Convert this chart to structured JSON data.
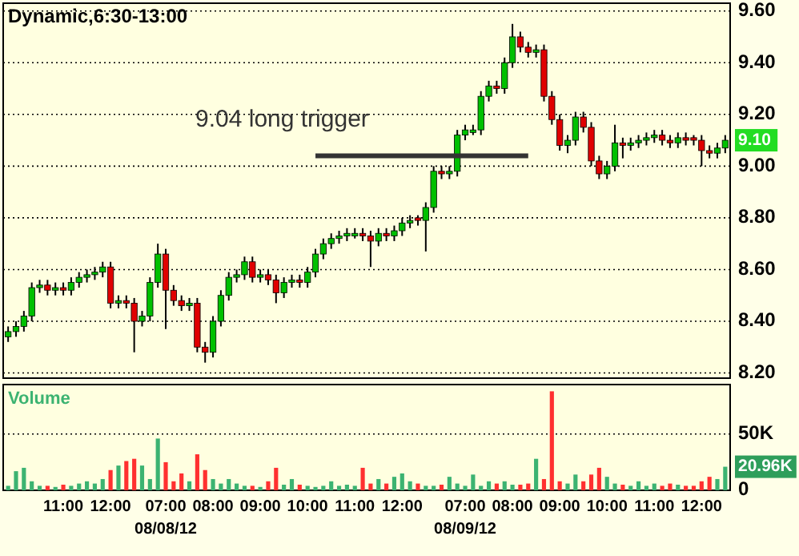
{
  "chart_data": [
    {
      "type": "candlestick",
      "title": "Dynamic,6:30-13:00",
      "ohlc": [
        [
          8.34,
          8.38,
          8.32,
          8.36
        ],
        [
          8.36,
          8.4,
          8.34,
          8.38
        ],
        [
          8.38,
          8.44,
          8.36,
          8.42
        ],
        [
          8.42,
          8.55,
          8.4,
          8.53
        ],
        [
          8.53,
          8.56,
          8.51,
          8.54
        ],
        [
          8.54,
          8.56,
          8.5,
          8.52
        ],
        [
          8.52,
          8.55,
          8.5,
          8.53
        ],
        [
          8.53,
          8.55,
          8.5,
          8.52
        ],
        [
          8.52,
          8.57,
          8.5,
          8.55
        ],
        [
          8.55,
          8.59,
          8.53,
          8.57
        ],
        [
          8.57,
          8.6,
          8.55,
          8.58
        ],
        [
          8.58,
          8.61,
          8.56,
          8.59
        ],
        [
          8.59,
          8.63,
          8.57,
          8.61
        ],
        [
          8.61,
          8.63,
          8.45,
          8.47
        ],
        [
          8.47,
          8.5,
          8.45,
          8.48
        ],
        [
          8.48,
          8.5,
          8.45,
          8.47
        ],
        [
          8.47,
          8.49,
          8.28,
          8.4
        ],
        [
          8.4,
          8.44,
          8.38,
          8.42
        ],
        [
          8.42,
          8.57,
          8.4,
          8.55
        ],
        [
          8.55,
          8.7,
          8.53,
          8.66
        ],
        [
          8.66,
          8.68,
          8.37,
          8.52
        ],
        [
          8.52,
          8.54,
          8.46,
          8.48
        ],
        [
          8.48,
          8.5,
          8.44,
          8.46
        ],
        [
          8.46,
          8.49,
          8.44,
          8.47
        ],
        [
          8.47,
          8.49,
          8.28,
          8.3
        ],
        [
          8.3,
          8.32,
          8.24,
          8.28
        ],
        [
          8.28,
          8.42,
          8.26,
          8.4
        ],
        [
          8.4,
          8.52,
          8.38,
          8.5
        ],
        [
          8.5,
          8.59,
          8.48,
          8.57
        ],
        [
          8.57,
          8.6,
          8.55,
          8.58
        ],
        [
          8.58,
          8.65,
          8.56,
          8.63
        ],
        [
          8.63,
          8.65,
          8.55,
          8.57
        ],
        [
          8.57,
          8.6,
          8.55,
          8.58
        ],
        [
          8.58,
          8.6,
          8.54,
          8.56
        ],
        [
          8.56,
          8.58,
          8.47,
          8.51
        ],
        [
          8.51,
          8.57,
          8.49,
          8.55
        ],
        [
          8.55,
          8.58,
          8.53,
          8.56
        ],
        [
          8.56,
          8.58,
          8.53,
          8.55
        ],
        [
          8.55,
          8.61,
          8.53,
          8.59
        ],
        [
          8.59,
          8.68,
          8.57,
          8.66
        ],
        [
          8.66,
          8.72,
          8.64,
          8.7
        ],
        [
          8.7,
          8.74,
          8.68,
          8.72
        ],
        [
          8.72,
          8.75,
          8.7,
          8.73
        ],
        [
          8.73,
          8.76,
          8.71,
          8.74
        ],
        [
          8.73,
          8.76,
          8.72,
          8.74
        ],
        [
          8.74,
          8.76,
          8.71,
          8.73
        ],
        [
          8.73,
          8.75,
          8.61,
          8.71
        ],
        [
          8.71,
          8.76,
          8.69,
          8.74
        ],
        [
          8.74,
          8.76,
          8.71,
          8.73
        ],
        [
          8.73,
          8.77,
          8.71,
          8.75
        ],
        [
          8.75,
          8.8,
          8.73,
          8.78
        ],
        [
          8.78,
          8.81,
          8.76,
          8.79
        ],
        [
          8.8,
          8.81,
          8.77,
          8.79
        ],
        [
          8.79,
          8.86,
          8.67,
          8.84
        ],
        [
          8.84,
          9.0,
          8.82,
          8.98
        ],
        [
          8.98,
          9.0,
          8.95,
          8.97
        ],
        [
          8.97,
          9.0,
          8.95,
          8.98
        ],
        [
          8.98,
          9.14,
          8.96,
          9.12
        ],
        [
          9.12,
          9.16,
          9.1,
          9.14
        ],
        [
          9.13,
          9.16,
          9.12,
          9.14
        ],
        [
          9.14,
          9.29,
          9.12,
          9.27
        ],
        [
          9.27,
          9.33,
          9.25,
          9.31
        ],
        [
          9.31,
          9.33,
          9.28,
          9.3
        ],
        [
          9.3,
          9.42,
          9.28,
          9.4
        ],
        [
          9.4,
          9.55,
          9.38,
          9.5
        ],
        [
          9.5,
          9.52,
          9.44,
          9.46
        ],
        [
          9.46,
          9.48,
          9.42,
          9.44
        ],
        [
          9.44,
          9.47,
          9.42,
          9.45
        ],
        [
          9.45,
          9.47,
          9.25,
          9.27
        ],
        [
          9.27,
          9.29,
          9.16,
          9.18
        ],
        [
          9.18,
          9.2,
          9.06,
          9.08
        ],
        [
          9.08,
          9.12,
          9.05,
          9.1
        ],
        [
          9.1,
          9.21,
          9.08,
          9.19
        ],
        [
          9.19,
          9.21,
          9.13,
          9.15
        ],
        [
          9.15,
          9.17,
          9.0,
          9.02
        ],
        [
          9.02,
          9.04,
          8.95,
          8.97
        ],
        [
          8.97,
          9.02,
          8.95,
          9.0
        ],
        [
          9.0,
          9.16,
          8.98,
          9.09
        ],
        [
          9.09,
          9.11,
          9.03,
          9.08
        ],
        [
          9.08,
          9.11,
          9.06,
          9.09
        ],
        [
          9.09,
          9.12,
          9.07,
          9.1
        ],
        [
          9.1,
          9.13,
          9.08,
          9.11
        ],
        [
          9.11,
          9.14,
          9.09,
          9.12
        ],
        [
          9.12,
          9.14,
          9.08,
          9.1
        ],
        [
          9.1,
          9.12,
          9.07,
          9.09
        ],
        [
          9.09,
          9.13,
          9.07,
          9.11
        ],
        [
          9.11,
          9.13,
          9.08,
          9.1
        ],
        [
          9.11,
          9.12,
          9.08,
          9.1
        ],
        [
          9.1,
          9.12,
          9.0,
          9.06
        ],
        [
          9.06,
          9.08,
          9.03,
          9.05
        ],
        [
          9.05,
          9.09,
          9.03,
          9.07
        ],
        [
          9.07,
          9.12,
          9.05,
          9.1
        ]
      ],
      "series": [
        {
          "type": "line",
          "name": "9.04 long trigger",
          "color": "#333333",
          "values": [
            null,
            null,
            null,
            null,
            null,
            null,
            null,
            null,
            null,
            null,
            null,
            null,
            null,
            null,
            null,
            null,
            null,
            null,
            null,
            null,
            null,
            null,
            null,
            null,
            null,
            null,
            null,
            null,
            null,
            null,
            null,
            null,
            null,
            null,
            null,
            null,
            null,
            null,
            null,
            9.04,
            9.04,
            9.04,
            9.04,
            9.04,
            9.04,
            9.04,
            9.04,
            9.04,
            9.04,
            9.04,
            9.04,
            9.04,
            9.04,
            9.04,
            9.04,
            9.04,
            9.04,
            9.04,
            9.04,
            9.04,
            9.04,
            9.04,
            9.04,
            9.04,
            9.04,
            9.04,
            9.04,
            null,
            null,
            null,
            null,
            null,
            null,
            null,
            null,
            null,
            null,
            null,
            null,
            null,
            null,
            null,
            null,
            null,
            null,
            null,
            null,
            null,
            null,
            null,
            null,
            null
          ]
        }
      ],
      "ylim": [
        8.18,
        9.63
      ],
      "yticks": [
        {
          "value": 8.2,
          "label": "8.20"
        },
        {
          "value": 8.4,
          "label": "8.40"
        },
        {
          "value": 8.6,
          "label": "8.60"
        },
        {
          "value": 8.8,
          "label": "8.80"
        },
        {
          "value": 9.0,
          "label": "9.00"
        },
        {
          "value": 9.2,
          "label": "9.20"
        },
        {
          "value": 9.4,
          "label": "9.40"
        },
        {
          "value": 9.6,
          "label": "9.60"
        }
      ],
      "grid": "y",
      "tick_labels": "y",
      "annotations": [
        "9.10"
      ]
    },
    {
      "type": "bar",
      "title": "Volume",
      "categories": [
        null,
        null,
        null,
        null,
        null,
        null,
        null,
        "11:00",
        null,
        null,
        null,
        null,
        null,
        "12:00",
        null,
        null,
        null,
        null,
        null,
        null,
        "07:00\n08/08/12",
        null,
        null,
        null,
        null,
        null,
        "08:00",
        null,
        null,
        null,
        null,
        null,
        "09:00",
        null,
        null,
        null,
        null,
        null,
        "10:00",
        null,
        null,
        null,
        null,
        null,
        "11:00",
        null,
        null,
        null,
        null,
        null,
        "12:00",
        null,
        null,
        null,
        null,
        null,
        null,
        null,
        "07:00\n08/09/12",
        null,
        null,
        null,
        null,
        null,
        "08:00",
        null,
        null,
        null,
        null,
        null,
        "09:00",
        null,
        null,
        null,
        null,
        null,
        "10:00",
        null,
        null,
        null,
        null,
        null,
        "11:00",
        null,
        null,
        null,
        null,
        null,
        "12:00",
        null,
        null,
        null
      ],
      "values": [
        4000,
        17000,
        20000,
        8000,
        4000,
        4000,
        3000,
        5000,
        4000,
        6000,
        8000,
        6000,
        10000,
        18000,
        22000,
        26000,
        28000,
        22000,
        10000,
        46000,
        25000,
        8000,
        15000,
        8000,
        32000,
        18000,
        10000,
        6000,
        10000,
        6000,
        4000,
        4000,
        3000,
        8000,
        20000,
        5000,
        10000,
        5000,
        4000,
        3000,
        4000,
        8000,
        4000,
        5000,
        4000,
        20000,
        6000,
        10000,
        6000,
        12000,
        15000,
        8000,
        6000,
        4000,
        4000,
        5000,
        12000,
        6000,
        4000,
        14000,
        4000,
        8000,
        6000,
        8000,
        5000,
        5000,
        6000,
        28000,
        10000,
        88000,
        8000,
        6000,
        14000,
        8000,
        14000,
        20000,
        12000,
        6000,
        5000,
        4000,
        8000,
        4000,
        6000,
        4000,
        6000,
        5000,
        4000,
        4000,
        8000,
        12000,
        10000,
        20960
      ],
      "colors": [
        "#3cb371",
        "#3cb371",
        "#3cb371",
        "#3cb371",
        "#3cb371",
        "#ff3030",
        "#3cb371",
        "#ff3030",
        "#3cb371",
        "#3cb371",
        "#3cb371",
        "#3cb371",
        "#3cb371",
        "#ff3030",
        "#3cb371",
        "#ff3030",
        "#ff3030",
        "#3cb371",
        "#3cb371",
        "#3cb371",
        "#ff3030",
        "#ff3030",
        "#ff3030",
        "#3cb371",
        "#ff3030",
        "#ff3030",
        "#3cb371",
        "#3cb371",
        "#3cb371",
        "#3cb371",
        "#3cb371",
        "#ff3030",
        "#3cb371",
        "#ff3030",
        "#ff3030",
        "#3cb371",
        "#3cb371",
        "#ff3030",
        "#3cb371",
        "#3cb371",
        "#3cb371",
        "#3cb371",
        "#3cb371",
        "#3cb371",
        "#3cb371",
        "#ff3030",
        "#ff3030",
        "#3cb371",
        "#ff3030",
        "#3cb371",
        "#3cb371",
        "#3cb371",
        "#ff3030",
        "#3cb371",
        "#3cb371",
        "#ff3030",
        "#3cb371",
        "#3cb371",
        "#3cb371",
        "#3cb371",
        "#3cb371",
        "#3cb371",
        "#ff3030",
        "#3cb371",
        "#3cb371",
        "#ff3030",
        "#ff3030",
        "#3cb371",
        "#ff3030",
        "#ff3030",
        "#ff3030",
        "#3cb371",
        "#3cb371",
        "#ff3030",
        "#ff3030",
        "#ff3030",
        "#3cb371",
        "#3cb371",
        "#ff3030",
        "#3cb371",
        "#3cb371",
        "#3cb371",
        "#3cb371",
        "#ff3030",
        "#ff3030",
        "#3cb371",
        "#ff3030",
        "#ff3030",
        "#ff3030",
        "#ff3030",
        "#3cb371",
        "#3cb371"
      ],
      "ylim": [
        0,
        94000
      ],
      "yticks": [
        {
          "value": 0,
          "label": "0"
        },
        {
          "value": 50000,
          "label": "50K"
        }
      ],
      "grid": "y",
      "annotations": [
        "20.96K"
      ]
    }
  ]
}
